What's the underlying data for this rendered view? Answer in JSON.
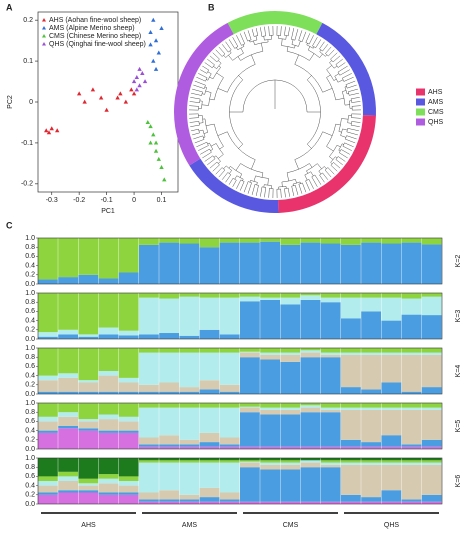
{
  "chart_data": [
    {
      "type": "scatter",
      "panel": "A",
      "xlabel": "PC1",
      "ylabel": "PC2",
      "xlim": [
        -0.35,
        0.16
      ],
      "ylim": [
        -0.22,
        0.22
      ],
      "xticks": [
        -0.3,
        -0.2,
        -0.1,
        0,
        0.1
      ],
      "yticks": [
        -0.2,
        -0.1,
        0,
        0.1,
        0.2
      ],
      "series": [
        {
          "name": "AHS (Aohan fine-wool sheep)",
          "color": "#e0262f",
          "x": [
            -0.32,
            -0.31,
            -0.3,
            -0.28,
            -0.2,
            -0.18,
            -0.15,
            -0.12,
            -0.1,
            -0.06,
            -0.05,
            -0.03,
            -0.01,
            0.0
          ],
          "y": [
            -0.07,
            -0.075,
            -0.065,
            -0.07,
            0.02,
            0.0,
            0.03,
            0.01,
            -0.02,
            0.01,
            0.02,
            0.0,
            0.03,
            0.02
          ]
        },
        {
          "name": "AMS (Alpine Merino sheep)",
          "color": "#2f6fd6",
          "x": [
            0.06,
            0.07,
            0.08,
            0.09,
            0.07,
            0.08,
            0.06,
            0.1
          ],
          "y": [
            0.17,
            0.2,
            0.15,
            0.12,
            0.1,
            0.08,
            0.14,
            0.18
          ]
        },
        {
          "name": "CMS (Chinese Merino sheep)",
          "color": "#4cc23a",
          "x": [
            0.05,
            0.06,
            0.07,
            0.06,
            0.08,
            0.08,
            0.09,
            0.1,
            0.11
          ],
          "y": [
            -0.05,
            -0.06,
            -0.08,
            -0.1,
            -0.1,
            -0.12,
            -0.14,
            -0.16,
            -0.19
          ]
        },
        {
          "name": "QHS (Qinghai fine-wool sheep)",
          "color": "#9b4fd6",
          "x": [
            0.0,
            0.01,
            0.02,
            0.03,
            0.02,
            0.01,
            0.04
          ],
          "y": [
            0.05,
            0.06,
            0.04,
            0.07,
            0.08,
            0.03,
            0.05
          ]
        }
      ]
    },
    {
      "type": "tree",
      "panel": "B",
      "series": [
        {
          "name": "AHS",
          "color": "#e8336d"
        },
        {
          "name": "AMS",
          "color": "#5858e0"
        },
        {
          "name": "CMS",
          "color": "#7ddf5a"
        },
        {
          "name": "QHS",
          "color": "#b05ce0"
        }
      ]
    },
    {
      "type": "admixture",
      "panel": "C",
      "ylim": [
        0,
        1
      ],
      "yticks": [
        {
          "value": 0,
          "label": "0.0"
        },
        0.2,
        0.4,
        0.6,
        0.8,
        {
          "value": 1,
          "label": "1.0"
        }
      ],
      "groups": [
        "AHS",
        "AMS",
        "CMS",
        "QHS"
      ],
      "panels": [
        {
          "label": "K=2",
          "series": [
            {
              "color": "#4a9de0",
              "values": [
                0.1,
                0.15,
                0.2,
                0.12,
                0.25,
                0.85,
                0.9,
                0.88,
                0.8,
                0.9,
                0.9,
                0.92,
                0.85,
                0.9,
                0.88,
                0.85,
                0.9,
                0.88,
                0.9,
                0.86
              ]
            },
            {
              "color": "#8ed43e",
              "values": [
                0.9,
                0.85,
                0.8,
                0.88,
                0.75,
                0.15,
                0.1,
                0.12,
                0.2,
                0.1,
                0.1,
                0.08,
                0.15,
                0.1,
                0.12,
                0.15,
                0.1,
                0.12,
                0.1,
                0.14
              ]
            }
          ]
        },
        {
          "label": "K=3",
          "series": [
            {
              "color": "#4a9de0",
              "values": [
                0.05,
                0.1,
                0.05,
                0.1,
                0.08,
                0.1,
                0.13,
                0.07,
                0.2,
                0.1,
                0.82,
                0.85,
                0.75,
                0.85,
                0.8,
                0.45,
                0.6,
                0.4,
                0.53,
                0.52
              ]
            },
            {
              "color": "#b3ecec",
              "values": [
                0.1,
                0.1,
                0.05,
                0.15,
                0.1,
                0.8,
                0.75,
                0.85,
                0.7,
                0.8,
                0.1,
                0.05,
                0.15,
                0.1,
                0.1,
                0.45,
                0.3,
                0.5,
                0.35,
                0.4
              ]
            },
            {
              "color": "#8ed43e",
              "values": [
                0.85,
                0.8,
                0.9,
                0.75,
                0.82,
                0.1,
                0.12,
                0.08,
                0.1,
                0.1,
                0.08,
                0.1,
                0.1,
                0.05,
                0.1,
                0.1,
                0.1,
                0.1,
                0.12,
                0.08
              ]
            }
          ]
        },
        {
          "label": "K=4",
          "series": [
            {
              "color": "#4a9de0",
              "values": [
                0.05,
                0.05,
                0.05,
                0.05,
                0.05,
                0.05,
                0.05,
                0.05,
                0.1,
                0.05,
                0.8,
                0.75,
                0.7,
                0.8,
                0.8,
                0.15,
                0.1,
                0.25,
                0.05,
                0.15
              ]
            },
            {
              "color": "#d6cbb0",
              "values": [
                0.25,
                0.3,
                0.2,
                0.35,
                0.2,
                0.15,
                0.2,
                0.1,
                0.2,
                0.15,
                0.1,
                0.1,
                0.15,
                0.1,
                0.05,
                0.7,
                0.75,
                0.6,
                0.8,
                0.7
              ]
            },
            {
              "color": "#b3ecec",
              "values": [
                0.1,
                0.1,
                0.05,
                0.1,
                0.1,
                0.7,
                0.65,
                0.75,
                0.6,
                0.7,
                0.02,
                0.05,
                0.05,
                0.05,
                0.05,
                0.05,
                0.05,
                0.05,
                0.05,
                0.05
              ]
            },
            {
              "color": "#8ed43e",
              "values": [
                0.6,
                0.55,
                0.7,
                0.5,
                0.65,
                0.1,
                0.1,
                0.1,
                0.1,
                0.1,
                0.08,
                0.1,
                0.1,
                0.05,
                0.1,
                0.1,
                0.1,
                0.1,
                0.1,
                0.1
              ]
            }
          ]
        },
        {
          "label": "K=5",
          "series": [
            {
              "color": "#d670e0",
              "values": [
                0.35,
                0.45,
                0.4,
                0.35,
                0.35,
                0.05,
                0.05,
                0.05,
                0.05,
                0.05,
                0.05,
                0.05,
                0.05,
                0.05,
                0.05,
                0.05,
                0.05,
                0.05,
                0.05,
                0.05
              ]
            },
            {
              "color": "#4a9de0",
              "values": [
                0.05,
                0.05,
                0.05,
                0.05,
                0.05,
                0.05,
                0.05,
                0.05,
                0.1,
                0.05,
                0.75,
                0.7,
                0.7,
                0.75,
                0.75,
                0.15,
                0.1,
                0.25,
                0.05,
                0.15
              ]
            },
            {
              "color": "#d6cbb0",
              "values": [
                0.2,
                0.2,
                0.15,
                0.25,
                0.2,
                0.15,
                0.2,
                0.1,
                0.2,
                0.15,
                0.1,
                0.1,
                0.1,
                0.1,
                0.05,
                0.65,
                0.7,
                0.55,
                0.75,
                0.65
              ]
            },
            {
              "color": "#b3ecec",
              "values": [
                0.1,
                0.1,
                0.05,
                0.1,
                0.1,
                0.65,
                0.6,
                0.7,
                0.55,
                0.65,
                0.02,
                0.05,
                0.05,
                0.05,
                0.05,
                0.05,
                0.05,
                0.05,
                0.05,
                0.05
              ]
            },
            {
              "color": "#8ed43e",
              "values": [
                0.3,
                0.2,
                0.35,
                0.25,
                0.3,
                0.1,
                0.1,
                0.1,
                0.1,
                0.1,
                0.08,
                0.1,
                0.1,
                0.05,
                0.1,
                0.1,
                0.1,
                0.1,
                0.1,
                0.1
              ]
            }
          ]
        },
        {
          "label": "K=6",
          "series": [
            {
              "color": "#d670e0",
              "values": [
                0.2,
                0.25,
                0.25,
                0.2,
                0.2,
                0.05,
                0.05,
                0.05,
                0.05,
                0.05,
                0.05,
                0.05,
                0.05,
                0.05,
                0.05,
                0.05,
                0.05,
                0.05,
                0.05,
                0.05
              ]
            },
            {
              "color": "#4a9de0",
              "values": [
                0.05,
                0.05,
                0.05,
                0.05,
                0.05,
                0.05,
                0.05,
                0.05,
                0.1,
                0.05,
                0.75,
                0.7,
                0.7,
                0.75,
                0.75,
                0.15,
                0.1,
                0.25,
                0.05,
                0.15
              ]
            },
            {
              "color": "#d6cbb0",
              "values": [
                0.15,
                0.2,
                0.1,
                0.2,
                0.15,
                0.15,
                0.2,
                0.1,
                0.2,
                0.15,
                0.1,
                0.1,
                0.1,
                0.1,
                0.05,
                0.65,
                0.7,
                0.55,
                0.75,
                0.65
              ]
            },
            {
              "color": "#b3ecec",
              "values": [
                0.1,
                0.1,
                0.05,
                0.1,
                0.1,
                0.65,
                0.6,
                0.7,
                0.55,
                0.65,
                0.02,
                0.05,
                0.05,
                0.05,
                0.05,
                0.05,
                0.05,
                0.05,
                0.05,
                0.05
              ]
            },
            {
              "color": "#8ed43e",
              "values": [
                0.1,
                0.1,
                0.1,
                0.1,
                0.1,
                0.05,
                0.05,
                0.05,
                0.05,
                0.05,
                0.03,
                0.05,
                0.05,
                0,
                0.05,
                0.05,
                0.05,
                0.05,
                0.05,
                0.05
              ]
            },
            {
              "color": "#1d7a1d",
              "values": [
                0.4,
                0.3,
                0.45,
                0.35,
                0.4,
                0.05,
                0.05,
                0.05,
                0.05,
                0.05,
                0.05,
                0.05,
                0.05,
                0.05,
                0.05,
                0.05,
                0.05,
                0.05,
                0.05,
                0.05
              ]
            }
          ]
        }
      ]
    }
  ]
}
